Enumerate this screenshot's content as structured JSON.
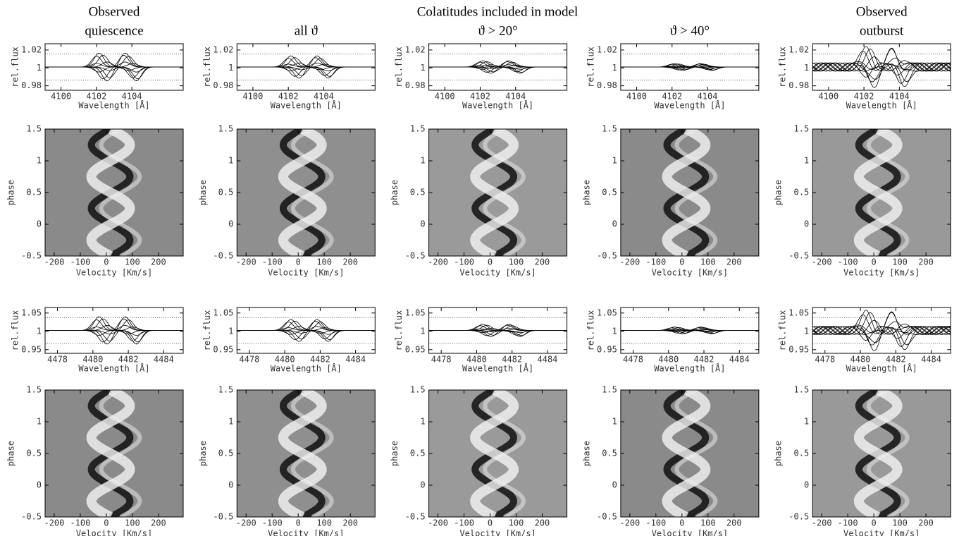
{
  "headers": {
    "group_title": "Colatitudes included in model",
    "columns": [
      [
        "Observed",
        "quiescence"
      ],
      [
        "all ϑ"
      ],
      [
        "ϑ > 20°"
      ],
      [
        "ϑ > 40°"
      ],
      [
        "Observed",
        "outburst"
      ]
    ]
  },
  "chart_data": [
    {
      "type": "line",
      "xlabel": "Wavelength [Å]",
      "ylabel": "rel.flux",
      "xlim": [
        4099.1,
        4106.9
      ],
      "xticks": [
        4100,
        4102,
        4104
      ],
      "ylim": [
        0.975,
        1.027
      ],
      "yticks": [
        0.98,
        1,
        1.02
      ]
    },
    {
      "type": "image",
      "xlabel": "Velocity [Km/s]",
      "ylabel": "phase",
      "xlim": [
        -235,
        295
      ],
      "xticks": [
        -200,
        -100,
        0,
        100,
        200
      ],
      "ylim": [
        -0.5,
        1.5
      ],
      "yticks": [
        -0.5,
        0,
        0.5,
        1,
        1.5
      ]
    },
    {
      "type": "line",
      "xlabel": "Wavelength [Å]",
      "ylabel": "rel.flux",
      "xlim": [
        4477.3,
        4485.1
      ],
      "xticks": [
        4478,
        4480,
        4482,
        4484
      ],
      "ylim": [
        0.94,
        1.065
      ],
      "yticks": [
        0.95,
        1,
        1.05
      ]
    },
    {
      "type": "image",
      "xlabel": "Velocity [Km/s]",
      "ylabel": "phase",
      "xlim": [
        -235,
        295
      ],
      "xticks": [
        -200,
        -100,
        0,
        100,
        200
      ],
      "ylim": [
        -0.5,
        1.5
      ],
      "yticks": [
        -0.5,
        0,
        0.5,
        1,
        1.5
      ]
    }
  ]
}
